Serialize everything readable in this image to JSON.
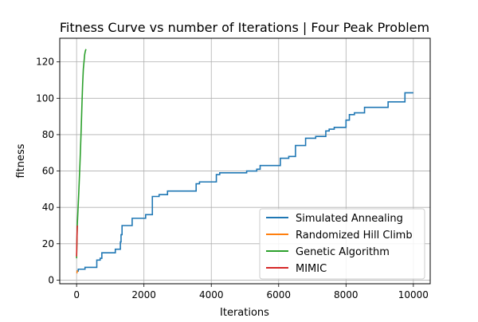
{
  "chart_data": {
    "type": "line",
    "title": "Fitness Curve vs number of Iterations | Four Peak Problem",
    "xlabel": "Iterations",
    "ylabel": "fitness",
    "xlim": [
      -500,
      10500
    ],
    "ylim": [
      -2,
      133
    ],
    "xticks": [
      0,
      2000,
      4000,
      6000,
      8000,
      10000
    ],
    "yticks": [
      0,
      20,
      40,
      60,
      80,
      100,
      120
    ],
    "grid": true,
    "legend_position": "lower-right",
    "series": [
      {
        "name": "Simulated Annealing",
        "color": "#1f77b4",
        "step": true,
        "x": [
          0,
          50,
          250,
          600,
          700,
          750,
          1150,
          1300,
          1320,
          1350,
          1650,
          2050,
          2250,
          2450,
          2700,
          3550,
          3650,
          4150,
          4250,
          5050,
          5350,
          5450,
          6050,
          6300,
          6500,
          6800,
          7100,
          7400,
          7500,
          7650,
          8000,
          8100,
          8250,
          8550,
          8750,
          9250,
          9750,
          10000
        ],
        "y": [
          5,
          6,
          7,
          11,
          12,
          15,
          17,
          21,
          25,
          30,
          34,
          36,
          46,
          47,
          49,
          53,
          54,
          58,
          59,
          60,
          61,
          63,
          67,
          68,
          74,
          78,
          79,
          82,
          83,
          84,
          88,
          91,
          92,
          95,
          95,
          98,
          103,
          103
        ]
      },
      {
        "name": "Randomized Hill Climb",
        "color": "#ff7f0e",
        "step": false,
        "x": [
          0,
          10,
          20,
          30,
          40
        ],
        "y": [
          4,
          4,
          5,
          5,
          5
        ]
      },
      {
        "name": "Genetic Algorithm",
        "color": "#2ca02c",
        "step": false,
        "x": [
          0,
          20,
          40,
          60,
          80,
          100,
          120,
          140,
          160,
          180,
          200,
          220,
          240,
          260,
          280
        ],
        "y": [
          12,
          30,
          38,
          46,
          55,
          64,
          74,
          85,
          97,
          108,
          116,
          120,
          124,
          126,
          127
        ]
      },
      {
        "name": "MIMIC",
        "color": "#d62728",
        "step": false,
        "x": [
          0,
          5,
          10,
          15,
          20,
          25
        ],
        "y": [
          13,
          18,
          22,
          26,
          29,
          30
        ]
      }
    ]
  }
}
